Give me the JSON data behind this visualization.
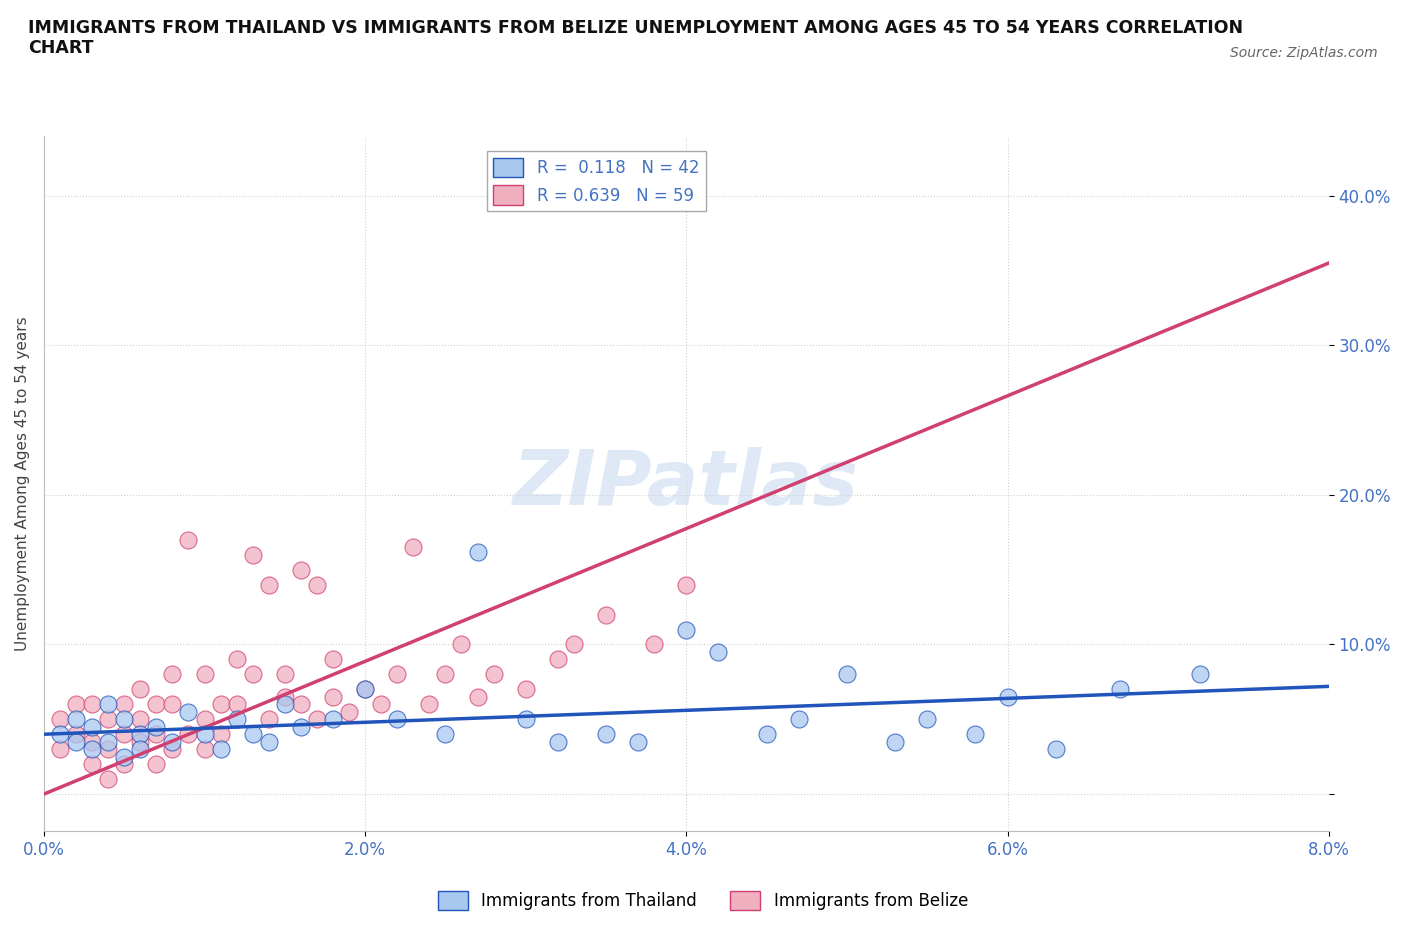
{
  "title": "IMMIGRANTS FROM THAILAND VS IMMIGRANTS FROM BELIZE UNEMPLOYMENT AMONG AGES 45 TO 54 YEARS CORRELATION\nCHART",
  "source": "Source: ZipAtlas.com",
  "ylabel": "Unemployment Among Ages 45 to 54 years",
  "xlim": [
    0.0,
    0.08
  ],
  "ylim": [
    -0.025,
    0.44
  ],
  "xticks": [
    0.0,
    0.02,
    0.04,
    0.06,
    0.08
  ],
  "xtick_labels": [
    "0.0%",
    "2.0%",
    "4.0%",
    "6.0%",
    "8.0%"
  ],
  "yticks": [
    0.0,
    0.1,
    0.2,
    0.3,
    0.4
  ],
  "ytick_labels": [
    "",
    "10.0%",
    "20.0%",
    "30.0%",
    "40.0%"
  ],
  "thailand_color": "#a8c8f0",
  "belize_color": "#f0b0c0",
  "thailand_line_color": "#2255bb",
  "belize_line_color": "#d04070",
  "R_thailand": 0.118,
  "N_thailand": 42,
  "R_belize": 0.639,
  "N_belize": 59,
  "legend_label_thailand": "Immigrants from Thailand",
  "legend_label_belize": "Immigrants from Belize",
  "watermark": "ZIPatlas",
  "background_color": "#ffffff",
  "thailand_x": [
    0.001,
    0.002,
    0.002,
    0.003,
    0.003,
    0.004,
    0.004,
    0.005,
    0.005,
    0.006,
    0.006,
    0.007,
    0.008,
    0.009,
    0.01,
    0.011,
    0.012,
    0.013,
    0.014,
    0.015,
    0.016,
    0.018,
    0.02,
    0.022,
    0.025,
    0.027,
    0.03,
    0.032,
    0.035,
    0.037,
    0.04,
    0.042,
    0.045,
    0.047,
    0.05,
    0.053,
    0.055,
    0.058,
    0.06,
    0.063,
    0.067,
    0.072
  ],
  "thailand_y": [
    0.04,
    0.035,
    0.05,
    0.03,
    0.045,
    0.06,
    0.035,
    0.025,
    0.05,
    0.04,
    0.03,
    0.045,
    0.035,
    0.055,
    0.04,
    0.03,
    0.05,
    0.04,
    0.035,
    0.06,
    0.045,
    0.05,
    0.07,
    0.05,
    0.04,
    0.162,
    0.05,
    0.035,
    0.04,
    0.035,
    0.11,
    0.095,
    0.04,
    0.05,
    0.08,
    0.035,
    0.05,
    0.04,
    0.065,
    0.03,
    0.07,
    0.08
  ],
  "belize_x": [
    0.001,
    0.001,
    0.002,
    0.002,
    0.003,
    0.003,
    0.003,
    0.004,
    0.004,
    0.004,
    0.005,
    0.005,
    0.005,
    0.006,
    0.006,
    0.006,
    0.007,
    0.007,
    0.007,
    0.008,
    0.008,
    0.008,
    0.009,
    0.009,
    0.01,
    0.01,
    0.01,
    0.011,
    0.011,
    0.012,
    0.012,
    0.013,
    0.013,
    0.014,
    0.014,
    0.015,
    0.015,
    0.016,
    0.016,
    0.017,
    0.017,
    0.018,
    0.018,
    0.019,
    0.02,
    0.021,
    0.022,
    0.023,
    0.024,
    0.025,
    0.026,
    0.027,
    0.028,
    0.03,
    0.032,
    0.033,
    0.035,
    0.038,
    0.04
  ],
  "belize_y": [
    0.03,
    0.05,
    0.04,
    0.06,
    0.035,
    0.06,
    0.02,
    0.03,
    0.05,
    0.01,
    0.04,
    0.06,
    0.02,
    0.035,
    0.05,
    0.07,
    0.04,
    0.06,
    0.02,
    0.06,
    0.08,
    0.03,
    0.04,
    0.17,
    0.05,
    0.08,
    0.03,
    0.06,
    0.04,
    0.09,
    0.06,
    0.16,
    0.08,
    0.05,
    0.14,
    0.065,
    0.08,
    0.06,
    0.15,
    0.05,
    0.14,
    0.065,
    0.09,
    0.055,
    0.07,
    0.06,
    0.08,
    0.165,
    0.06,
    0.08,
    0.1,
    0.065,
    0.08,
    0.07,
    0.09,
    0.1,
    0.12,
    0.1,
    0.14
  ]
}
